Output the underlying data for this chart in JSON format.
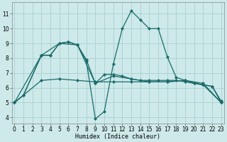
{
  "bg_color": "#cde9e9",
  "grid_color": "#aacfcf",
  "line_color": "#1a6b6b",
  "xlabel": "Humidex (Indice chaleur)",
  "xlim": [
    -0.3,
    23.3
  ],
  "ylim": [
    3.6,
    11.8
  ],
  "yticks": [
    4,
    5,
    6,
    7,
    8,
    9,
    10,
    11
  ],
  "xticks": [
    0,
    1,
    2,
    3,
    4,
    5,
    6,
    7,
    8,
    9,
    10,
    11,
    12,
    13,
    14,
    15,
    16,
    17,
    18,
    19,
    20,
    21,
    22,
    23
  ],
  "line1_x": [
    0,
    3,
    5,
    7,
    9,
    11,
    13,
    15,
    17,
    19,
    21,
    23
  ],
  "line1_y": [
    5.0,
    6.5,
    6.6,
    6.5,
    6.4,
    6.4,
    6.4,
    6.4,
    6.4,
    6.5,
    6.3,
    5.0
  ],
  "line2_x": [
    0,
    1,
    3,
    4,
    5,
    6,
    7,
    8,
    9,
    10,
    11,
    12,
    13,
    14,
    15,
    16,
    17,
    18,
    19,
    20,
    21,
    22,
    23
  ],
  "line2_y": [
    5.0,
    5.5,
    8.2,
    8.2,
    9.0,
    9.1,
    8.9,
    7.8,
    3.9,
    4.4,
    7.6,
    10.0,
    11.2,
    10.6,
    10.0,
    10.0,
    8.1,
    6.7,
    6.5,
    6.3,
    6.2,
    6.1,
    5.1
  ],
  "line3_x": [
    0,
    1,
    3,
    4,
    5,
    6,
    7,
    8,
    9,
    10,
    11,
    12,
    13,
    14,
    15,
    16,
    17,
    18,
    19,
    20,
    21,
    22,
    23
  ],
  "line3_y": [
    5.0,
    5.5,
    8.2,
    8.2,
    9.0,
    9.1,
    8.9,
    7.9,
    6.3,
    6.9,
    6.9,
    6.8,
    6.6,
    6.5,
    6.5,
    6.5,
    6.5,
    6.5,
    6.4,
    6.3,
    6.2,
    6.1,
    5.0
  ],
  "line4_x": [
    0,
    3,
    5,
    7,
    9,
    11,
    13,
    15,
    17,
    19,
    21,
    23
  ],
  "line4_y": [
    5.0,
    8.2,
    9.0,
    8.9,
    6.3,
    6.8,
    6.6,
    6.4,
    6.4,
    6.5,
    6.2,
    5.0
  ]
}
